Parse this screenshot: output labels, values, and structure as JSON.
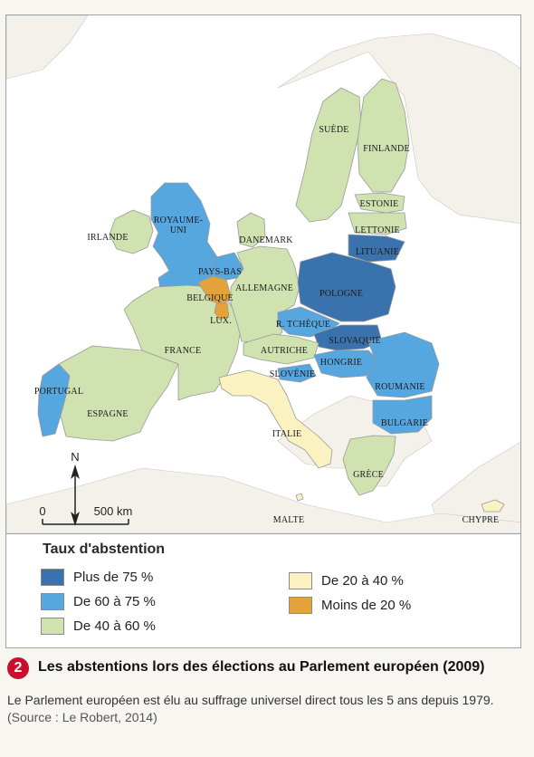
{
  "map": {
    "countries": [
      {
        "id": "royaume-uni",
        "label_lines": [
          "ROYAUME-",
          "UNI"
        ],
        "category": "c60_75"
      },
      {
        "id": "irlande",
        "label_lines": [
          "IRLANDE"
        ],
        "category": "c40_60"
      },
      {
        "id": "portugal",
        "label_lines": [
          "PORTUGAL"
        ],
        "category": "c60_75"
      },
      {
        "id": "espagne",
        "label_lines": [
          "ESPAGNE"
        ],
        "category": "c40_60"
      },
      {
        "id": "france",
        "label_lines": [
          "FRANCE"
        ],
        "category": "c40_60"
      },
      {
        "id": "belgique",
        "label_lines": [
          "BELGIQUE"
        ],
        "category": "lt20"
      },
      {
        "id": "pays-bas",
        "label_lines": [
          "PAYS-BAS"
        ],
        "category": "c60_75"
      },
      {
        "id": "lux",
        "label_lines": [
          "LUX."
        ],
        "category": "lt20"
      },
      {
        "id": "allemagne",
        "label_lines": [
          "ALLEMAGNE"
        ],
        "category": "c40_60"
      },
      {
        "id": "danemark",
        "label_lines": [
          "DANEMARK"
        ],
        "category": "c40_60"
      },
      {
        "id": "suede",
        "label_lines": [
          "SUÈDE"
        ],
        "category": "c40_60"
      },
      {
        "id": "finlande",
        "label_lines": [
          "FINLANDE"
        ],
        "category": "c40_60"
      },
      {
        "id": "estonie",
        "label_lines": [
          "ESTONIE"
        ],
        "category": "c40_60"
      },
      {
        "id": "lettonie",
        "label_lines": [
          "LETTONIE"
        ],
        "category": "c40_60"
      },
      {
        "id": "lituanie",
        "label_lines": [
          "LITUANIE"
        ],
        "category": "gt75"
      },
      {
        "id": "pologne",
        "label_lines": [
          "POLOGNE"
        ],
        "category": "gt75"
      },
      {
        "id": "r-tcheque",
        "label_lines": [
          "R. TCHÈQUE"
        ],
        "category": "c60_75"
      },
      {
        "id": "slovaquie",
        "label_lines": [
          "SLOVAQUIE"
        ],
        "category": "gt75"
      },
      {
        "id": "autriche",
        "label_lines": [
          "AUTRICHE"
        ],
        "category": "c40_60"
      },
      {
        "id": "hongrie",
        "label_lines": [
          "HONGRIE"
        ],
        "category": "c60_75"
      },
      {
        "id": "slovenie",
        "label_lines": [
          "SLOVÉNIE"
        ],
        "category": "c60_75"
      },
      {
        "id": "roumanie",
        "label_lines": [
          "ROUMANIE"
        ],
        "category": "c60_75"
      },
      {
        "id": "bulgarie",
        "label_lines": [
          "BULGARIE"
        ],
        "category": "c60_75"
      },
      {
        "id": "italie",
        "label_lines": [
          "ITALIE"
        ],
        "category": "c20_40"
      },
      {
        "id": "grece",
        "label_lines": [
          "GRÈCE"
        ],
        "category": "c40_60"
      },
      {
        "id": "malte",
        "label_lines": [
          "MALTE"
        ],
        "category": "c20_40"
      },
      {
        "id": "chypre",
        "label_lines": [
          "CHYPRE"
        ],
        "category": "c20_40"
      }
    ],
    "north_label": "N",
    "scale": {
      "zero": "0",
      "distance": "500 km"
    }
  },
  "legend": {
    "title": "Taux d'abstention",
    "items": [
      {
        "key": "gt75",
        "label": "Plus de 75 %",
        "color": "#3a72ad"
      },
      {
        "key": "c60_75",
        "label": "De 60 à 75 %",
        "color": "#56a6df"
      },
      {
        "key": "c40_60",
        "label": "De 40 à 60 %",
        "color": "#cfe2b0"
      },
      {
        "key": "c20_40",
        "label": "De 20 à 40 %",
        "color": "#fbf2c2"
      },
      {
        "key": "lt20",
        "label": "Moins de 20 %",
        "color": "#e3a33a"
      }
    ]
  },
  "colors": {
    "sea": "#ffffff",
    "non_eu_land": "#f3f1ea",
    "border": "#9a9a9a",
    "caption_badge": "#c8102e"
  },
  "caption": {
    "number": "2",
    "title": "Les abstentions lors des élections au Parlement européen (2009)",
    "text": "Le Parlement européen est élu au suffrage universel direct tous les 5 ans depuis 1979.",
    "source": "(Source : Le Robert, 2014)"
  }
}
